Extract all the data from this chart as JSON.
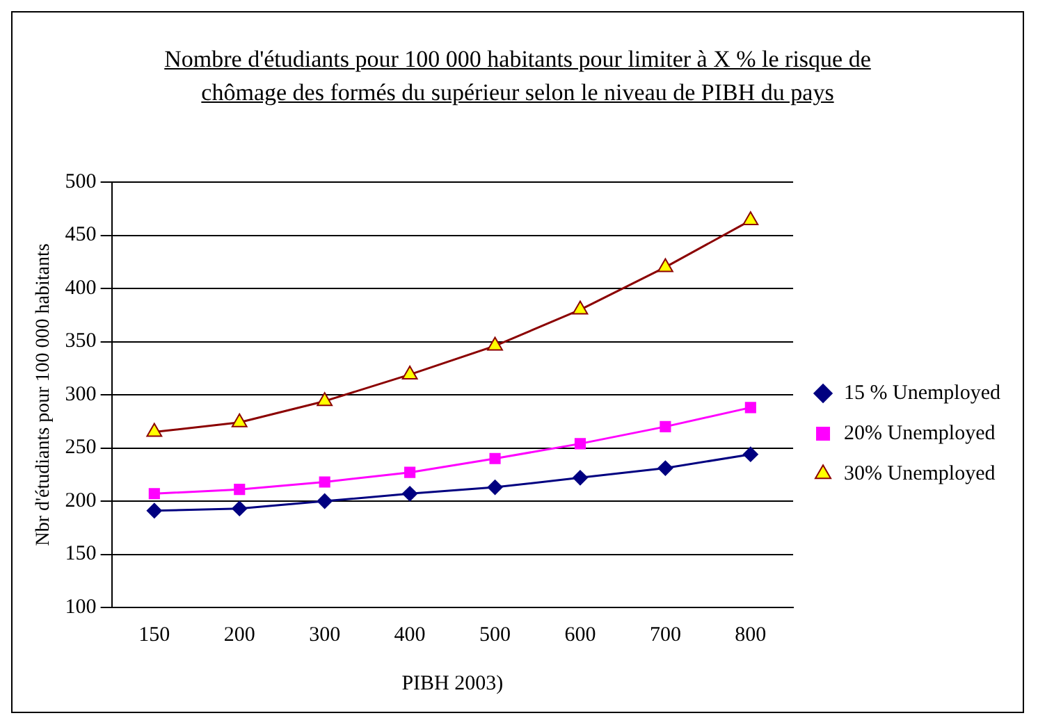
{
  "chart_data": {
    "type": "line",
    "title": "Nombre d'étudiants pour 100 000 habitants pour limiter à X % le risque de chômage des formés du supérieur selon le niveau de PIBH du pays",
    "xlabel": "PIBH 2003)",
    "ylabel": "Nbr d'étudiants pour 100 000 habitants",
    "categories": [
      "150",
      "200",
      "300",
      "400",
      "500",
      "600",
      "700",
      "800"
    ],
    "series": [
      {
        "name": "15 % Unemployed",
        "color": "#000080",
        "marker": "diamond",
        "values": [
          191,
          193,
          200,
          207,
          213,
          222,
          231,
          244
        ]
      },
      {
        "name": "20% Unemployed",
        "color": "#ff00ff",
        "marker": "square",
        "values": [
          207,
          211,
          218,
          227,
          240,
          254,
          270,
          288
        ]
      },
      {
        "name": "30% Unemployed",
        "color": "#8b0000",
        "marker": "triangle",
        "values": [
          265,
          274,
          294,
          319,
          346,
          380,
          420,
          464
        ]
      }
    ],
    "ylim": [
      100,
      500
    ],
    "yticks": [
      100,
      150,
      200,
      250,
      300,
      350,
      400,
      450,
      500
    ],
    "grid": "y",
    "legend": "right",
    "line_style": "solid"
  }
}
